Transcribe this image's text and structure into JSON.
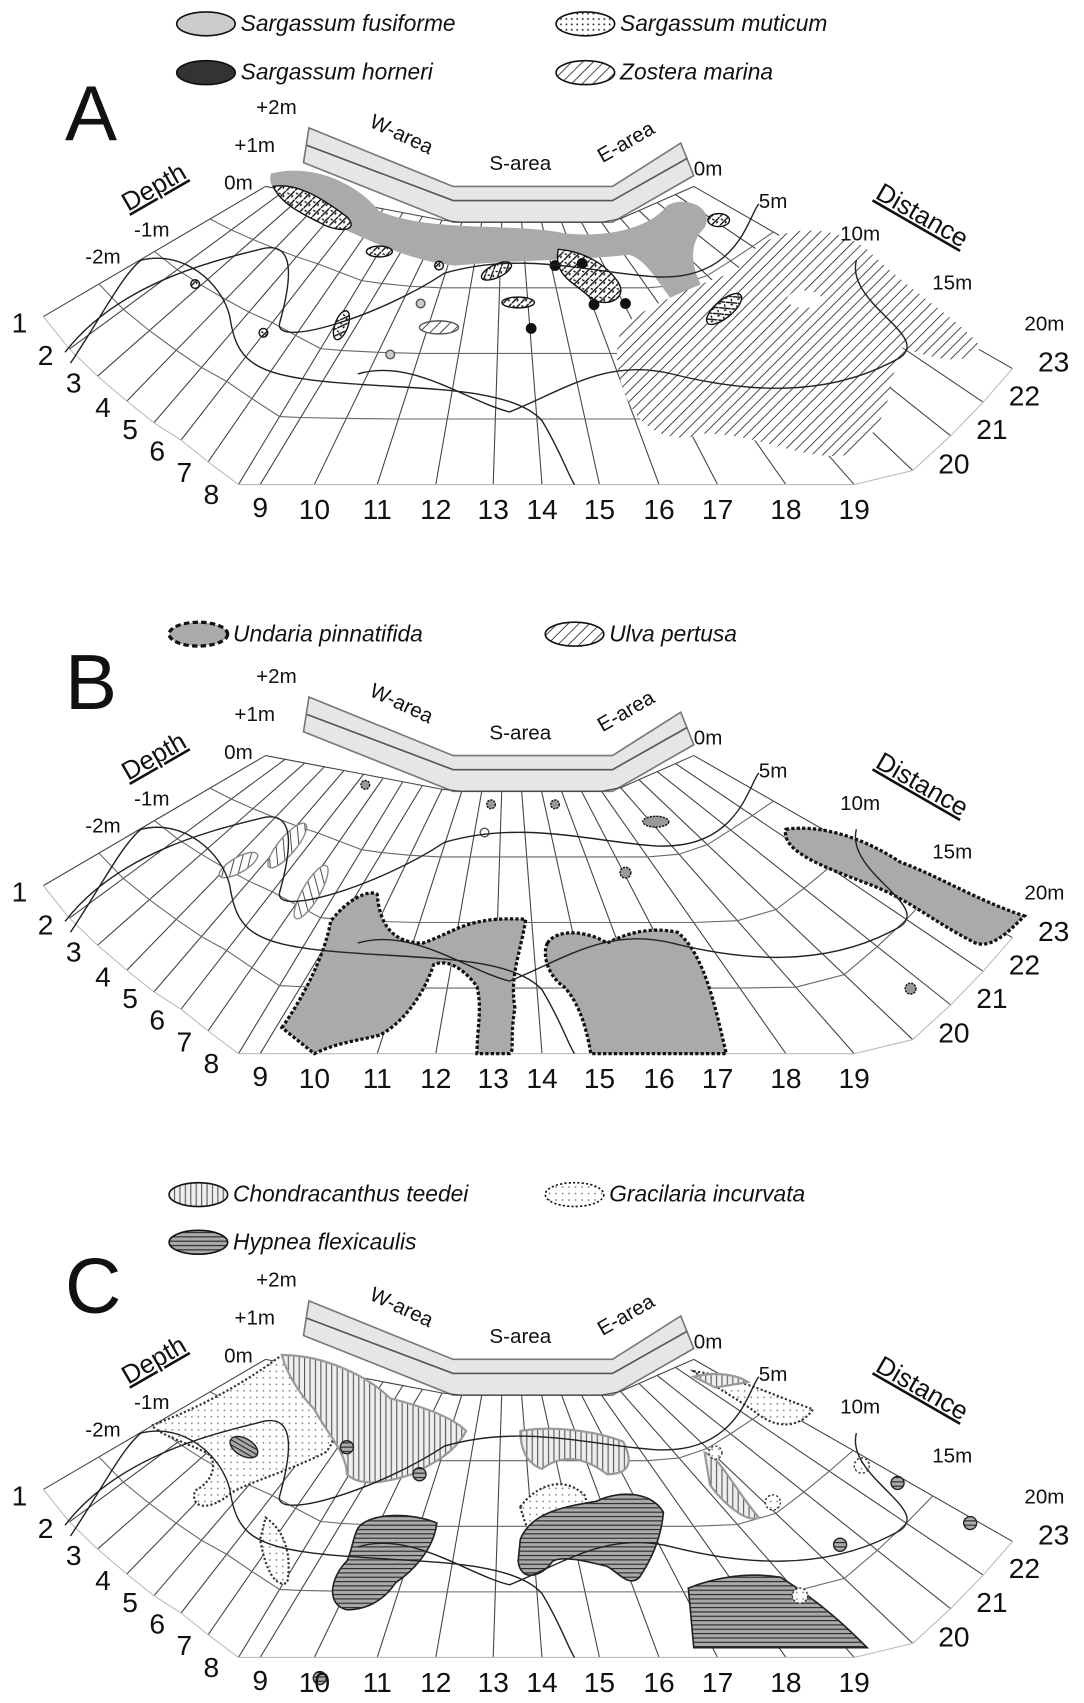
{
  "panels": [
    {
      "label": "A",
      "legend": [
        "Sargassum fusiforme",
        "Sargassum muticum",
        "Sargassum horneri",
        "Zostera marina"
      ],
      "depth_title": "Depth",
      "depth_labels": [
        "+2m",
        "+1m",
        "0m",
        "-1m",
        "-2m"
      ],
      "areas": [
        "W-area",
        "S-area",
        "E-area"
      ],
      "distance_title": "Distance",
      "distance_labels": [
        "0m",
        "5m",
        "10m",
        "15m",
        "20m"
      ],
      "transects": [
        "1",
        "2",
        "3",
        "4",
        "5",
        "6",
        "7",
        "8",
        "9",
        "10",
        "11",
        "12",
        "13",
        "14",
        "15",
        "16",
        "17",
        "18",
        "19",
        "20",
        "21",
        "22",
        "23"
      ]
    },
    {
      "label": "B",
      "legend": [
        "Undaria pinnatifida",
        "Ulva pertusa"
      ],
      "depth_title": "Depth",
      "depth_labels": [
        "+2m",
        "+1m",
        "0m",
        "-1m",
        "-2m"
      ],
      "areas": [
        "W-area",
        "S-area",
        "E-area"
      ],
      "distance_title": "Distance",
      "distance_labels": [
        "0m",
        "5m",
        "10m",
        "15m",
        "20m"
      ],
      "transects": [
        "1",
        "2",
        "3",
        "4",
        "5",
        "6",
        "7",
        "8",
        "9",
        "10",
        "11",
        "12",
        "13",
        "14",
        "15",
        "16",
        "17",
        "18",
        "19",
        "20",
        "21",
        "22",
        "23"
      ]
    },
    {
      "label": "C",
      "legend": [
        "Chondracanthus teedei",
        "Gracilaria incurvata",
        "Hypnea flexicaulis"
      ],
      "depth_title": "Depth",
      "depth_labels": [
        "+2m",
        "+1m",
        "0m",
        "-1m",
        "-2m"
      ],
      "areas": [
        "W-area",
        "S-area",
        "E-area"
      ],
      "distance_title": "Distance",
      "distance_labels": [
        "0m",
        "5m",
        "10m",
        "15m",
        "20m"
      ],
      "transects": [
        "1",
        "2",
        "3",
        "4",
        "5",
        "6",
        "7",
        "8",
        "9",
        "10",
        "11",
        "12",
        "13",
        "14",
        "15",
        "16",
        "17",
        "18",
        "19",
        "20",
        "21",
        "22",
        "23"
      ]
    }
  ]
}
